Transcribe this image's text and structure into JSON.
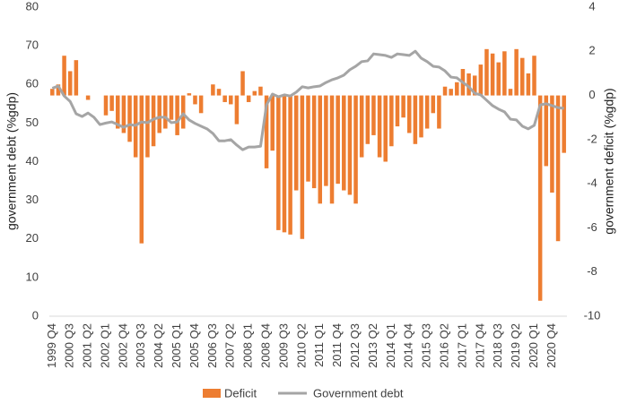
{
  "chart_data": {
    "type": "bar-line",
    "y_label": "government debt (%gdp)",
    "y2_label": "government deficit (%gdp)",
    "categories": [
      "1999 Q4",
      null,
      null,
      "2000 Q3",
      null,
      null,
      "2001 Q2",
      null,
      null,
      "2002 Q1",
      null,
      null,
      "2002 Q4",
      null,
      null,
      "2003 Q3",
      null,
      null,
      "2004 Q2",
      null,
      null,
      "2005 Q1",
      null,
      null,
      "2005 Q4",
      null,
      null,
      "2006 Q3",
      null,
      null,
      "2007 Q2",
      null,
      null,
      "2008 Q1",
      null,
      null,
      "2008 Q4",
      null,
      null,
      "2009 Q3",
      null,
      null,
      "2010 Q2",
      null,
      null,
      "2011 Q1",
      null,
      null,
      "2011 Q4",
      null,
      null,
      "2012 Q3",
      null,
      null,
      "2013 Q2",
      null,
      null,
      "2014 Q1",
      null,
      null,
      "2014 Q4",
      null,
      null,
      "2015 Q3",
      null,
      null,
      "2016 Q2",
      null,
      null,
      "2017 Q1",
      null,
      null,
      "2017 Q4",
      null,
      null,
      "2018 Q3",
      null,
      null,
      "2019 Q2",
      null,
      null,
      "2020 Q1",
      null,
      null,
      "2020 Q4",
      null,
      null
    ],
    "series": [
      {
        "name": "Deficit",
        "type": "bar",
        "axis": "y2",
        "color": "#ed7d31",
        "values": [
          0.3,
          0.5,
          1.8,
          1.1,
          1.6,
          0,
          -0.2,
          0,
          0,
          -0.9,
          -0.7,
          -1.5,
          -1.7,
          -2.1,
          -2.8,
          -6.7,
          -2.8,
          -2.3,
          -1.7,
          -1.5,
          -1.1,
          -1.8,
          -1.5,
          0.1,
          -0.4,
          -0.8,
          0,
          0.5,
          0.3,
          -0.3,
          -0.4,
          -1.3,
          1.1,
          -0.3,
          0.2,
          0.4,
          -3.3,
          -2.5,
          -6.1,
          -6.2,
          -6.3,
          -4.3,
          -6.5,
          -3.9,
          -4.2,
          -4.9,
          -4.1,
          -4.9,
          -4.0,
          -4.3,
          -4.5,
          -4.9,
          -2.8,
          -2.2,
          -1.8,
          -2.8,
          -3.0,
          -2.3,
          -1.4,
          -1.0,
          -1.7,
          -2.2,
          -1.9,
          -1.5,
          -0.8,
          -1.5,
          0.4,
          0.3,
          0.6,
          1.2,
          1.0,
          0.9,
          1.4,
          2.1,
          1.9,
          1.5,
          2.0,
          0.3,
          2.1,
          1.7,
          1.0,
          1.8,
          -9.3,
          -3.2,
          -4.4,
          -6.6,
          -2.6
        ]
      },
      {
        "name": "Government debt",
        "type": "line",
        "axis": "y",
        "color": "#a5a5a5",
        "values": [
          59,
          59.6,
          57,
          55.6,
          52.4,
          51.7,
          52.6,
          51.5,
          49.6,
          50,
          50.3,
          49.6,
          48.9,
          49.6,
          49.4,
          50.3,
          50.1,
          51,
          51.5,
          51.5,
          50.1,
          50.3,
          52.4,
          50.8,
          49.9,
          49.2,
          48.5,
          47.3,
          45.4,
          45.4,
          45.7,
          44.3,
          43.1,
          43.8,
          43.8,
          44,
          54.7,
          57.5,
          56.8,
          57.3,
          57,
          58,
          59.4,
          59.1,
          59.4,
          59.6,
          60.5,
          61.2,
          61.7,
          62.4,
          63.8,
          64.7,
          65.9,
          66.1,
          67.9,
          67.7,
          67.5,
          67,
          67.9,
          67.7,
          67.5,
          68.6,
          66.8,
          65.9,
          64.7,
          64.5,
          63.5,
          61.9,
          61.7,
          60.5,
          59.4,
          57.7,
          57.3,
          55.9,
          54.5,
          53.6,
          52.9,
          51,
          50.8,
          49.2,
          48.5,
          49.4,
          54.7,
          55,
          54.5,
          54,
          53.8
        ]
      }
    ],
    "ylim": [
      0,
      80
    ],
    "yticks": [
      0,
      10,
      20,
      30,
      40,
      50,
      60,
      70,
      80
    ],
    "y2lim": [
      -10,
      4
    ],
    "y2ticks": [
      -10,
      -8,
      -6,
      -4,
      -2,
      0,
      2,
      4
    ],
    "grid": false,
    "legend": "bottom"
  }
}
